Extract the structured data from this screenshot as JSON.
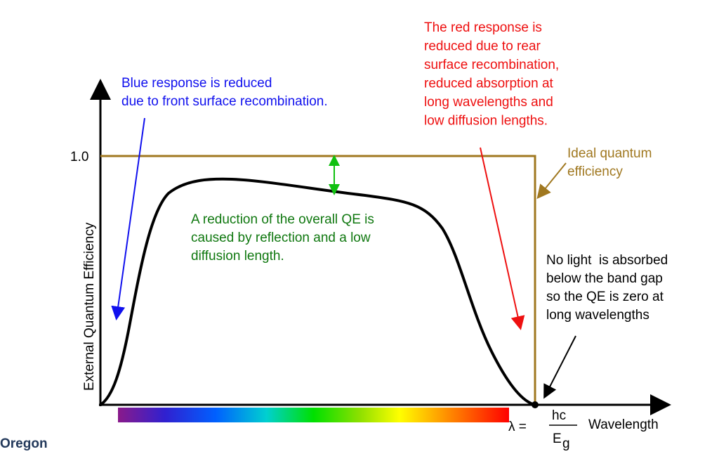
{
  "y_axis": {
    "label": "External Quantum Efficiency",
    "tick": "1.0"
  },
  "x_axis": {
    "label": "Wavelength"
  },
  "band_gap": {
    "lambda": "λ =",
    "numerator": "hc",
    "denominator": "E",
    "subscript": "g"
  },
  "annotations": {
    "blue": [
      "Blue response is reduced",
      "due to front surface recombination."
    ],
    "red": [
      "The red response is",
      "reduced due to rear",
      "surface recombination,",
      "reduced absorption at",
      "long wavelengths and",
      "low diffusion lengths."
    ],
    "ideal": [
      "Ideal quantum",
      "efficiency"
    ],
    "reduction": [
      "A reduction of the overall QE is",
      "caused by reflection and a low",
      "diffusion length."
    ],
    "zero": [
      "No light  is absorbed",
      "below the band gap",
      "so the QE is zero at",
      "long wavelengths"
    ]
  },
  "logo": "Oregon"
}
